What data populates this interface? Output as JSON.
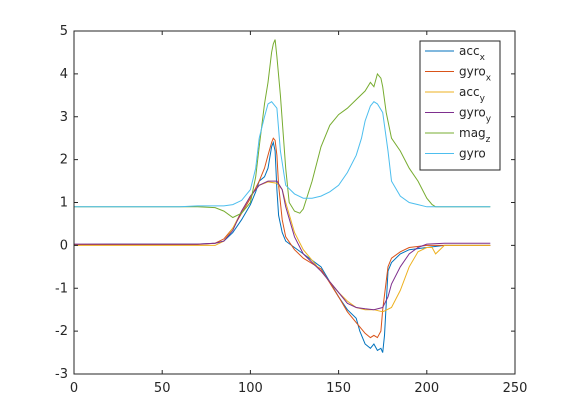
{
  "chart_data": {
    "type": "line",
    "title": "",
    "xlabel": "",
    "ylabel": "",
    "xlim": [
      0,
      250
    ],
    "ylim": [
      -3,
      5
    ],
    "xticks": [
      0,
      50,
      100,
      150,
      200,
      250
    ],
    "yticks": [
      -3,
      -2,
      -1,
      0,
      1,
      2,
      3,
      4,
      5
    ],
    "grid": false,
    "legend_position": "top-right",
    "series": [
      {
        "name": "acc",
        "subscript": "x",
        "color": "#0072BD",
        "x": [
          0,
          20,
          40,
          60,
          70,
          80,
          85,
          90,
          95,
          100,
          103,
          105,
          108,
          110,
          112,
          113,
          114,
          115,
          116,
          118,
          120,
          125,
          130,
          140,
          150,
          155,
          160,
          162,
          165,
          168,
          170,
          172,
          174,
          175,
          176,
          178,
          180,
          185,
          190,
          200,
          210,
          220,
          230,
          236
        ],
        "y": [
          0.02,
          0.03,
          0.03,
          0.03,
          0.03,
          0.05,
          0.1,
          0.3,
          0.6,
          0.95,
          1.25,
          1.5,
          1.6,
          1.8,
          2.3,
          2.4,
          2.2,
          1.3,
          0.7,
          0.3,
          0.1,
          -0.05,
          -0.2,
          -0.5,
          -1.2,
          -1.5,
          -1.7,
          -2.0,
          -2.3,
          -2.4,
          -2.3,
          -2.45,
          -2.4,
          -2.5,
          -2.1,
          -0.6,
          -0.4,
          -0.2,
          -0.1,
          -0.05,
          0.0,
          0.0,
          0.0,
          0.0
        ]
      },
      {
        "name": "gyro",
        "subscript": "x",
        "color": "#D95319",
        "x": [
          0,
          20,
          40,
          60,
          70,
          80,
          85,
          90,
          95,
          100,
          105,
          108,
          110,
          112,
          113,
          114,
          115,
          116,
          118,
          120,
          125,
          130,
          140,
          150,
          155,
          160,
          165,
          168,
          170,
          172,
          174,
          175,
          178,
          180,
          185,
          190,
          200,
          210,
          220,
          230,
          236
        ],
        "y": [
          0.02,
          0.02,
          0.02,
          0.02,
          0.02,
          0.05,
          0.15,
          0.4,
          0.75,
          1.1,
          1.5,
          1.8,
          2.1,
          2.4,
          2.5,
          2.45,
          2.1,
          1.4,
          0.6,
          0.2,
          -0.1,
          -0.3,
          -0.55,
          -1.2,
          -1.55,
          -1.8,
          -2.05,
          -2.15,
          -2.1,
          -2.15,
          -2.0,
          -1.5,
          -0.5,
          -0.3,
          -0.15,
          -0.05,
          0.0,
          0.0,
          0.0,
          0.0,
          0.0
        ]
      },
      {
        "name": "acc",
        "subscript": "y",
        "color": "#EDB120",
        "x": [
          0,
          20,
          40,
          60,
          70,
          75,
          80,
          85,
          90,
          95,
          100,
          105,
          110,
          115,
          118,
          120,
          125,
          130,
          140,
          150,
          155,
          160,
          165,
          170,
          175,
          180,
          185,
          190,
          195,
          200,
          203,
          205,
          210,
          220,
          230,
          236
        ],
        "y": [
          0.0,
          0.0,
          0.0,
          0.0,
          0.0,
          0.0,
          0.0,
          0.1,
          0.4,
          0.8,
          1.15,
          1.4,
          1.48,
          1.45,
          1.3,
          1.0,
          0.3,
          -0.1,
          -0.6,
          -1.1,
          -1.3,
          -1.45,
          -1.5,
          -1.5,
          -1.55,
          -1.45,
          -1.05,
          -0.5,
          -0.15,
          -0.05,
          -0.05,
          -0.2,
          0.0,
          0.0,
          0.0,
          0.0
        ]
      },
      {
        "name": "gyro",
        "subscript": "y",
        "color": "#7E2F8E",
        "x": [
          0,
          20,
          40,
          60,
          70,
          80,
          85,
          90,
          95,
          100,
          105,
          110,
          115,
          118,
          120,
          125,
          130,
          140,
          150,
          155,
          160,
          165,
          170,
          175,
          178,
          180,
          185,
          190,
          195,
          200,
          210,
          220,
          230,
          236
        ],
        "y": [
          0.03,
          0.03,
          0.03,
          0.03,
          0.03,
          0.05,
          0.1,
          0.35,
          0.8,
          1.15,
          1.4,
          1.5,
          1.5,
          1.3,
          0.9,
          0.2,
          -0.2,
          -0.6,
          -1.1,
          -1.35,
          -1.45,
          -1.48,
          -1.5,
          -1.45,
          -1.2,
          -0.9,
          -0.5,
          -0.2,
          -0.05,
          0.03,
          0.05,
          0.05,
          0.05,
          0.05
        ]
      },
      {
        "name": "mag",
        "subscript": "z",
        "color": "#77AC30",
        "x": [
          0,
          20,
          40,
          60,
          70,
          80,
          85,
          90,
          95,
          100,
          103,
          105,
          108,
          110,
          112,
          113,
          114,
          115,
          117,
          120,
          122,
          125,
          128,
          130,
          135,
          140,
          145,
          150,
          155,
          160,
          165,
          168,
          170,
          172,
          174,
          175,
          177,
          180,
          185,
          190,
          195,
          200,
          203,
          205,
          210,
          220,
          230,
          236
        ],
        "y": [
          0.9,
          0.9,
          0.9,
          0.9,
          0.9,
          0.88,
          0.8,
          0.65,
          0.75,
          1.0,
          1.6,
          2.3,
          3.3,
          3.8,
          4.5,
          4.7,
          4.8,
          4.4,
          3.5,
          1.8,
          1.0,
          0.8,
          0.75,
          0.85,
          1.5,
          2.3,
          2.8,
          3.05,
          3.2,
          3.4,
          3.6,
          3.8,
          3.7,
          4.0,
          3.9,
          3.7,
          3.1,
          2.5,
          2.2,
          1.8,
          1.5,
          1.1,
          0.95,
          0.9,
          0.9,
          0.9,
          0.9,
          0.9
        ]
      },
      {
        "name": "gyro",
        "subscript": "",
        "color": "#4DBEEE",
        "x": [
          0,
          20,
          40,
          60,
          70,
          80,
          85,
          90,
          95,
          100,
          103,
          105,
          108,
          110,
          112,
          115,
          117,
          120,
          125,
          130,
          135,
          140,
          145,
          150,
          155,
          160,
          163,
          165,
          168,
          170,
          172,
          175,
          178,
          180,
          185,
          190,
          195,
          200,
          210,
          220,
          230,
          236
        ],
        "y": [
          0.9,
          0.9,
          0.9,
          0.9,
          0.92,
          0.92,
          0.92,
          0.95,
          1.05,
          1.3,
          1.8,
          2.5,
          3.0,
          3.3,
          3.35,
          3.2,
          2.2,
          1.4,
          1.2,
          1.1,
          1.1,
          1.15,
          1.25,
          1.4,
          1.7,
          2.1,
          2.5,
          2.9,
          3.25,
          3.35,
          3.3,
          3.1,
          2.2,
          1.5,
          1.15,
          1.0,
          0.95,
          0.9,
          0.9,
          0.9,
          0.9,
          0.9
        ]
      }
    ]
  }
}
